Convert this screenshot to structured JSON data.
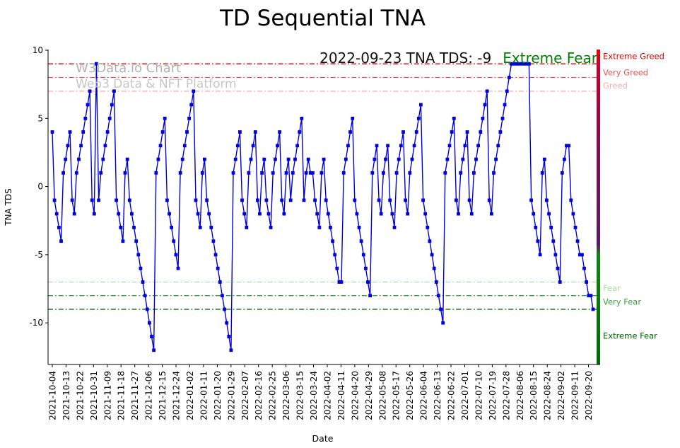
{
  "title": "TD Sequential TNA",
  "watermark": {
    "line1": "W3Data.io Chart",
    "line2": "Web3 Data & NFT Platform"
  },
  "annotation": {
    "date_text": "2022-09-23 TNA TDS: -9",
    "sentiment_text": "Extreme Fear",
    "sentiment_color": "#008000"
  },
  "chart_data": {
    "type": "line",
    "title": "TD Sequential TNA",
    "xlabel": "Date",
    "ylabel": "TNA TDS",
    "ylim": [
      -13.05,
      10.05
    ],
    "yticks": [
      10,
      5,
      0,
      -5,
      -10
    ],
    "x_start": "2021-10-04",
    "x_end": "2022-09-23",
    "x_tick_interval_days": 9,
    "x_span_days": 354,
    "x_tick_labels": [
      "2021-10-04",
      "2021-10-13",
      "2021-10-22",
      "2021-10-31",
      "2021-11-09",
      "2021-11-18",
      "2021-11-27",
      "2021-12-06",
      "2021-12-15",
      "2021-12-24",
      "2022-01-02",
      "2022-01-11",
      "2022-01-20",
      "2022-01-29",
      "2022-02-07",
      "2022-02-16",
      "2022-02-25",
      "2022-03-06",
      "2022-03-15",
      "2022-03-24",
      "2022-04-02",
      "2022-04-11",
      "2022-04-20",
      "2022-04-29",
      "2022-05-08",
      "2022-05-17",
      "2022-05-26",
      "2022-06-04",
      "2022-06-13",
      "2022-06-22",
      "2022-07-01",
      "2022-07-10",
      "2022-07-19",
      "2022-07-28",
      "2022-08-06",
      "2022-08-15",
      "2022-08-24",
      "2022-09-02",
      "2022-09-11",
      "2022-09-20"
    ],
    "series": [
      {
        "name": "TNA TDS",
        "color": "#0000dd",
        "marker": "square",
        "values": [
          4,
          -1,
          -2,
          -3,
          -4,
          1,
          2,
          3,
          4,
          -1,
          -2,
          1,
          2,
          3,
          4,
          5,
          6,
          7,
          -1,
          -2,
          9,
          -1,
          1,
          2,
          3,
          4,
          5,
          6,
          7,
          -1,
          -2,
          -3,
          -4,
          1,
          2,
          -1,
          -2,
          -3,
          -4,
          -5,
          -6,
          -7,
          -8,
          -9,
          -10,
          -11,
          -12,
          1,
          2,
          3,
          4,
          5,
          -1,
          -2,
          -3,
          -4,
          -5,
          -6,
          1,
          2,
          3,
          4,
          5,
          6,
          7,
          -1,
          -2,
          -3,
          1,
          2,
          -1,
          -2,
          -3,
          -4,
          -5,
          -6,
          -7,
          -8,
          -9,
          -10,
          -11,
          -12,
          1,
          2,
          3,
          4,
          -1,
          -2,
          -3,
          1,
          2,
          3,
          4,
          -1,
          -2,
          1,
          2,
          -1,
          -2,
          -3,
          1,
          2,
          3,
          4,
          -1,
          -2,
          1,
          2,
          -1,
          1,
          2,
          3,
          4,
          5,
          -1,
          1,
          2,
          1,
          1,
          -1,
          -2,
          -3,
          1,
          2,
          -1,
          -2,
          -3,
          -4,
          -5,
          -6,
          -7,
          -7,
          1,
          2,
          3,
          4,
          5,
          -1,
          -2,
          -3,
          -4,
          -5,
          -6,
          -7,
          -8,
          1,
          2,
          3,
          -1,
          -2,
          1,
          2,
          3,
          -1,
          -2,
          -3,
          1,
          2,
          3,
          4,
          -1,
          -2,
          1,
          2,
          3,
          4,
          5,
          6,
          -1,
          -2,
          -3,
          -4,
          -5,
          -6,
          -7,
          -8,
          -9,
          -10,
          1,
          2,
          3,
          4,
          5,
          -1,
          -2,
          1,
          2,
          3,
          4,
          -1,
          -2,
          1,
          2,
          3,
          4,
          5,
          6,
          7,
          -1,
          -2,
          1,
          2,
          3,
          4,
          5,
          6,
          7,
          8,
          9,
          9,
          9,
          9,
          9,
          9,
          9,
          9,
          9,
          -1,
          -2,
          -3,
          -4,
          -5,
          1,
          2,
          -1,
          -2,
          -3,
          -4,
          -5,
          -6,
          -7,
          1,
          2,
          3,
          3,
          -1,
          -2,
          -3,
          -4,
          -5,
          -5,
          -6,
          -7,
          -8,
          -8,
          -9
        ]
      }
    ],
    "thresholds": [
      {
        "slug": "extreme-greed",
        "value": 9,
        "label": "Extreme Greed",
        "color": "#dd0000",
        "label_y": 9.55
      },
      {
        "slug": "very-greed",
        "value": 8,
        "label": "Very Greed",
        "color": "#ee5555",
        "label_y": 8.35
      },
      {
        "slug": "greed",
        "value": 7,
        "label": "Greed",
        "color": "#f4aeae",
        "label_y": 7.4
      },
      {
        "slug": "fear",
        "value": -7,
        "label": "Fear",
        "color": "#9fdf9f",
        "label_y": -7.45
      },
      {
        "slug": "very-fear",
        "value": -8,
        "label": "Very Fear",
        "color": "#3f9e3f",
        "label_y": -8.45
      },
      {
        "slug": "extreme-fear",
        "value": -9,
        "label": "Extreme Fear",
        "color": "#006400",
        "label_y": -10.95
      }
    ],
    "right_bar": {
      "width": 5,
      "stops": [
        {
          "offset": 0,
          "color": "#e80000"
        },
        {
          "offset": 0.05,
          "color": "#c2002d"
        },
        {
          "offset": 0.33,
          "color": "#7c1050"
        },
        {
          "offset": 0.62,
          "color": "#5a1a68"
        },
        {
          "offset": 0.65,
          "color": "#128212"
        },
        {
          "offset": 1,
          "color": "#006a00"
        }
      ]
    },
    "legend_position": "none",
    "grid": false
  }
}
